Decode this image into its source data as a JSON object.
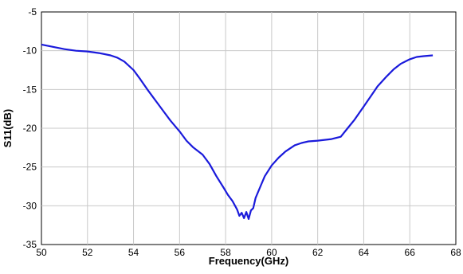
{
  "chart_data": {
    "type": "line",
    "title": "",
    "xlabel": "Frequency(GHz)",
    "ylabel": "S11(dB)",
    "xlim": [
      50,
      68
    ],
    "ylim": [
      -35,
      -5
    ],
    "x_ticks": [
      50,
      52,
      54,
      56,
      58,
      60,
      62,
      64,
      66,
      68
    ],
    "y_ticks": [
      -5,
      -10,
      -15,
      -20,
      -25,
      -30,
      -35
    ],
    "grid": true,
    "legend": "none",
    "series": [
      {
        "color": "#1a1adb",
        "x": [
          50,
          50.5,
          51,
          51.5,
          52,
          52.5,
          53,
          53.3,
          53.6,
          54,
          54.3,
          54.6,
          55,
          55.3,
          55.6,
          56,
          56.3,
          56.6,
          57,
          57.3,
          57.6,
          57.9,
          58.1,
          58.3,
          58.5,
          58.6,
          58.7,
          58.8,
          58.9,
          59.0,
          59.1,
          59.2,
          59.3,
          59.5,
          59.7,
          60,
          60.3,
          60.6,
          61,
          61.3,
          61.6,
          62,
          62.3,
          62.6,
          63,
          63.3,
          63.6,
          64,
          64.3,
          64.6,
          65,
          65.3,
          65.6,
          66,
          66.3,
          66.6,
          67
        ],
        "y": [
          -9.2,
          -9.5,
          -9.8,
          -10.0,
          -10.1,
          -10.3,
          -10.6,
          -10.9,
          -11.4,
          -12.5,
          -13.7,
          -15.0,
          -16.6,
          -17.8,
          -19.0,
          -20.4,
          -21.6,
          -22.5,
          -23.4,
          -24.6,
          -26.2,
          -27.6,
          -28.6,
          -29.4,
          -30.5,
          -31.3,
          -30.9,
          -31.6,
          -30.8,
          -31.7,
          -30.6,
          -30.3,
          -29.0,
          -27.6,
          -26.2,
          -24.8,
          -23.8,
          -23.0,
          -22.2,
          -21.9,
          -21.7,
          -21.6,
          -21.5,
          -21.4,
          -21.1,
          -20.0,
          -18.9,
          -17.2,
          -15.9,
          -14.6,
          -13.3,
          -12.4,
          -11.7,
          -11.1,
          -10.8,
          -10.7,
          -10.6
        ]
      }
    ]
  }
}
